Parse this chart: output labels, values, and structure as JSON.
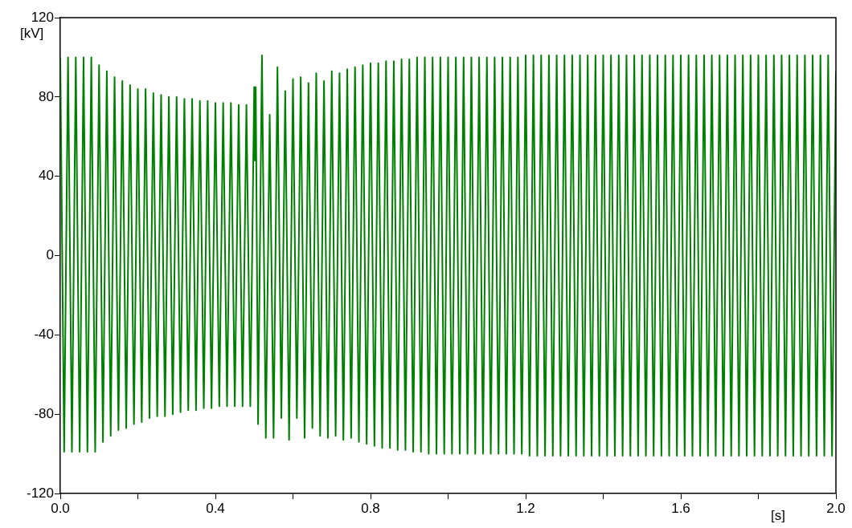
{
  "chart_data": {
    "type": "line",
    "xlabel": "[s]",
    "ylabel": "[kV]",
    "xlim": [
      0,
      2
    ],
    "ylim": [
      -120,
      120
    ],
    "xticks": [
      {
        "value": 0,
        "label": "0.0"
      },
      {
        "value": 0.2,
        "label": null
      },
      {
        "value": 0.4,
        "label": "0.4"
      },
      {
        "value": 0.6,
        "label": null
      },
      {
        "value": 0.8,
        "label": "0.8"
      },
      {
        "value": 1,
        "label": null
      },
      {
        "value": 1.2,
        "label": "1.2"
      },
      {
        "value": 1.4,
        "label": null
      },
      {
        "value": 1.6,
        "label": "1.6"
      },
      {
        "value": 1.8,
        "label": null
      },
      {
        "value": 2,
        "label": "2.0"
      }
    ],
    "yticks": [
      -120,
      -80,
      -40,
      0,
      40,
      80,
      120
    ],
    "grid": false,
    "marker": "none",
    "line_style": "solid",
    "series": [
      {
        "color": "#008000",
        "x": [
          0,
          0.01,
          0.02,
          0.03,
          0.04,
          0.05,
          0.06,
          0.07,
          0.08,
          0.09,
          0.1,
          0.11,
          0.12,
          0.13,
          0.14,
          0.15,
          0.16,
          0.17,
          0.18,
          0.19,
          0.2,
          0.21,
          0.22,
          0.23,
          0.24,
          0.25,
          0.26,
          0.27,
          0.28,
          0.29,
          0.3,
          0.31,
          0.32,
          0.33,
          0.34,
          0.35,
          0.36,
          0.37,
          0.38,
          0.39,
          0.4,
          0.41,
          0.42,
          0.43,
          0.44,
          0.45,
          0.46,
          0.47,
          0.48,
          0.49,
          0.5,
          0.502,
          0.504,
          0.51,
          0.52,
          0.53,
          0.54,
          0.55,
          0.56,
          0.57,
          0.58,
          0.59,
          0.6,
          0.61,
          0.62,
          0.63,
          0.64,
          0.65,
          0.66,
          0.67,
          0.68,
          0.69,
          0.7,
          0.71,
          0.72,
          0.73,
          0.74,
          0.75,
          0.76,
          0.77,
          0.78,
          0.79,
          0.8,
          0.81,
          0.82,
          0.83,
          0.84,
          0.85,
          0.86,
          0.87,
          0.88,
          0.89,
          0.9,
          0.91,
          0.92,
          0.93,
          0.94,
          0.95,
          0.96,
          0.97,
          0.98,
          0.99,
          1.0,
          1.01,
          1.02,
          1.03,
          1.04,
          1.05,
          1.06,
          1.07,
          1.08,
          1.09,
          1.1,
          1.11,
          1.12,
          1.13,
          1.14,
          1.15,
          1.16,
          1.17,
          1.18,
          1.19,
          1.2,
          1.21,
          1.22,
          1.23,
          1.24,
          1.25,
          1.26,
          1.27,
          1.28,
          1.29,
          1.3,
          1.31,
          1.32,
          1.33,
          1.34,
          1.35,
          1.36,
          1.37,
          1.38,
          1.39,
          1.4,
          1.41,
          1.42,
          1.43,
          1.44,
          1.45,
          1.46,
          1.47,
          1.48,
          1.49,
          1.5,
          1.51,
          1.52,
          1.53,
          1.54,
          1.55,
          1.56,
          1.57,
          1.58,
          1.59,
          1.6,
          1.61,
          1.62,
          1.63,
          1.64,
          1.65,
          1.66,
          1.67,
          1.68,
          1.69,
          1.7,
          1.71,
          1.72,
          1.73,
          1.74,
          1.75,
          1.76,
          1.77,
          1.78,
          1.79,
          1.8,
          1.81,
          1.82,
          1.83,
          1.84,
          1.85,
          1.86,
          1.87,
          1.88,
          1.89,
          1.9,
          1.91,
          1.92,
          1.93,
          1.94,
          1.95,
          1.96,
          1.97,
          1.98,
          1.99,
          2.0
        ],
        "values": [
          100,
          -99,
          100,
          -99,
          100,
          -99,
          100,
          -99,
          100,
          -99,
          96,
          -94,
          93,
          -91,
          90,
          -88,
          88,
          -87,
          86,
          -85,
          84,
          -84,
          84,
          -82,
          82,
          -81,
          81,
          -81,
          80,
          -80,
          80,
          -79,
          79,
          -78,
          79,
          -78,
          78,
          -77,
          78,
          -77,
          77,
          -76,
          77,
          -76,
          77,
          -76,
          76,
          -76,
          76,
          -76,
          85,
          48,
          85,
          -85,
          101,
          -92,
          71,
          -92,
          95,
          -82,
          83,
          -93,
          89,
          -82,
          90,
          -92,
          87,
          -87,
          92,
          -91,
          88,
          -92,
          93,
          -91,
          92,
          -93,
          94,
          -92,
          95,
          -94,
          96,
          -95,
          97,
          -96,
          97,
          -97,
          98,
          -97,
          98,
          -98,
          99,
          -98,
          99,
          -99,
          100,
          -99,
          100,
          -100,
          100,
          -100,
          100,
          -100,
          100,
          -100,
          100,
          -100,
          100,
          -100,
          100,
          -100,
          100,
          -100,
          100,
          -100,
          100,
          -100,
          100,
          -100,
          100,
          -100,
          100,
          -100,
          101,
          -101,
          101,
          -101,
          101,
          -101,
          101,
          -101,
          101,
          -101,
          101,
          -101,
          101,
          -101,
          101,
          -101,
          101,
          -101,
          101,
          -101,
          101,
          -101,
          101,
          -101,
          101,
          -101,
          101,
          -101,
          101,
          -101,
          101,
          -101,
          101,
          -101,
          101,
          -101,
          101,
          -101,
          101,
          -101,
          101,
          -101,
          101,
          -101,
          101,
          -101,
          101,
          -101,
          101,
          -101,
          101,
          -101,
          101,
          -101,
          101,
          -101,
          101,
          -101,
          101,
          -101,
          101,
          -101,
          101,
          -101,
          101,
          -101,
          101,
          -101,
          101,
          -101,
          101,
          -101,
          101,
          -101,
          101,
          -101,
          101,
          -101,
          101,
          -101,
          93
        ]
      }
    ]
  }
}
